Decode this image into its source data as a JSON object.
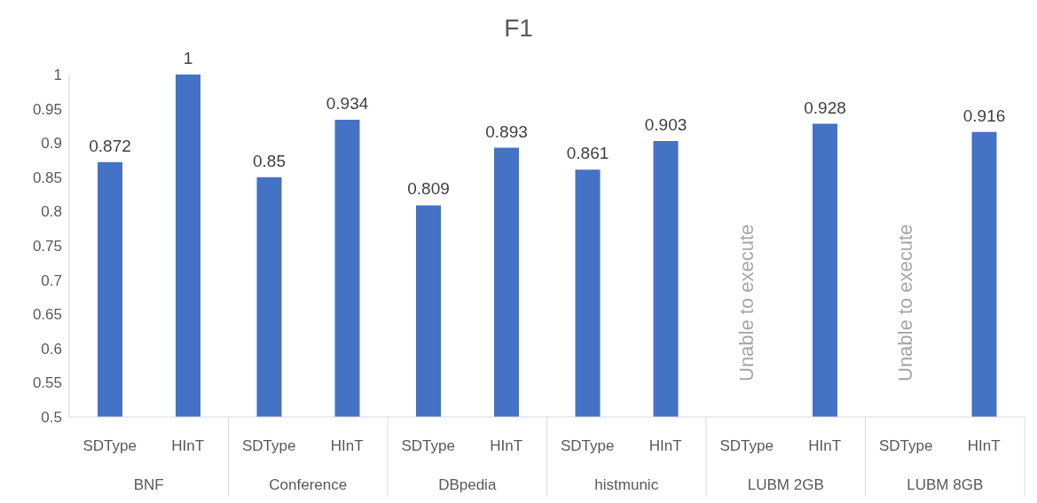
{
  "chart_data": {
    "type": "bar",
    "title": "F1",
    "categories": [
      "BNF",
      "Conference",
      "DBpedia",
      "histmunic",
      "LUBM 2GB",
      "LUBM 8GB"
    ],
    "series": [
      {
        "name": "SDType",
        "color": "#4472c4",
        "values": [
          0.872,
          0.85,
          0.809,
          0.861,
          null,
          null
        ]
      },
      {
        "name": "HInT",
        "color": "#4472c4",
        "values": [
          1,
          0.934,
          0.893,
          0.903,
          0.928,
          0.916
        ]
      }
    ],
    "ylim": [
      0.5,
      1
    ],
    "yticks": [
      0.5,
      0.55,
      0.6,
      0.65,
      0.7,
      0.75,
      0.8,
      0.85,
      0.9,
      0.95,
      1
    ],
    "grid": false,
    "legend": false,
    "data_labels": true,
    "annotations": [
      "Unable to execute",
      "Unable to execute"
    ]
  }
}
